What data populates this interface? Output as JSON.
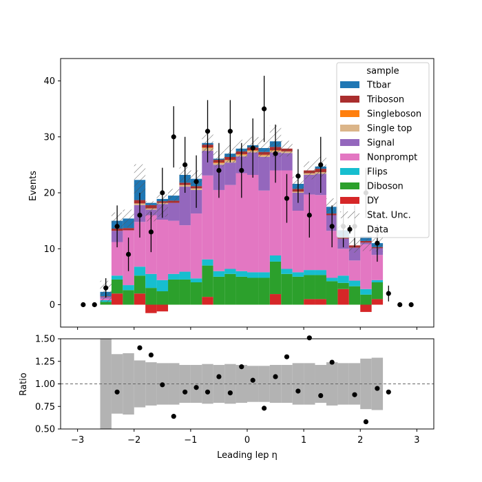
{
  "chart_data": [
    {
      "type": "bar",
      "stacked": true,
      "ylabel": "Events",
      "ylim": [
        -4,
        44
      ],
      "yticks": [
        0,
        10,
        20,
        30,
        40
      ],
      "xlim": [
        -3.3,
        3.3
      ],
      "xticks": [
        -3,
        -2,
        -1,
        0,
        1,
        2,
        3
      ],
      "legend": {
        "title": "sample",
        "position": "upper-right"
      },
      "bin_edges": [
        -2.6,
        -2.4,
        -2.2,
        -2.0,
        -1.8,
        -1.6,
        -1.4,
        -1.2,
        -1.0,
        -0.8,
        -0.6,
        -0.4,
        -0.2,
        0.0,
        0.2,
        0.4,
        0.6,
        0.8,
        1.0,
        1.2,
        1.4,
        1.6,
        1.8,
        2.0,
        2.2,
        2.4
      ],
      "series": [
        {
          "name": "DY",
          "color": "#d62728",
          "values": [
            0,
            2.0,
            0,
            2.0,
            -1.5,
            -1.2,
            0,
            0,
            0,
            1.4,
            0,
            0,
            0,
            0,
            0,
            1.9,
            0,
            0,
            1.0,
            1.0,
            0,
            2.8,
            0,
            -1.3,
            1.0
          ]
        },
        {
          "name": "Diboson",
          "color": "#2ca02c",
          "values": [
            0.5,
            2.5,
            2.6,
            3.2,
            3.0,
            2.4,
            4.5,
            4.5,
            4.0,
            5.6,
            5.0,
            5.5,
            5.0,
            4.8,
            4.8,
            5.8,
            5.5,
            5.0,
            4.3,
            4.3,
            4.2,
            1.1,
            3.3,
            1.8,
            3.0
          ]
        },
        {
          "name": "Flips",
          "color": "#17becf",
          "values": [
            0.3,
            0.7,
            0.9,
            1.6,
            2.5,
            2.0,
            1.0,
            1.4,
            0.7,
            1.1,
            1.0,
            0.9,
            1.0,
            1.0,
            1.0,
            1.1,
            0.9,
            0.8,
            0.9,
            0.9,
            0.6,
            1.3,
            1.0,
            1.0,
            0.4
          ]
        },
        {
          "name": "Nonprompt",
          "color": "#e377c2",
          "values": [
            0.3,
            6.0,
            9.8,
            8.0,
            10.5,
            10.8,
            9.5,
            8.3,
            11.6,
            15.0,
            14.5,
            15.0,
            17.5,
            17.4,
            14.6,
            15.2,
            17.6,
            11.0,
            13.5,
            13.4,
            8.4,
            4.8,
            3.6,
            8.0,
            4.5
          ]
        },
        {
          "name": "Signal",
          "color": "#9467bd",
          "values": [
            0.3,
            2.0,
            0,
            3.0,
            1.0,
            2.8,
            3.2,
            6.9,
            4.2,
            4.4,
            4.5,
            4.0,
            3.0,
            4.0,
            6.0,
            3.2,
            3.1,
            3.2,
            3.5,
            3.8,
            2.8,
            1.8,
            2.3,
            0.3,
            1.2
          ]
        },
        {
          "name": "Single top",
          "color": "#dbb589",
          "values": [
            0,
            0,
            0,
            0.3,
            0.2,
            0.2,
            0,
            0.3,
            0.3,
            0.5,
            0.3,
            0.4,
            0.3,
            0.3,
            0.3,
            0.3,
            0.3,
            0.2,
            0.3,
            0.3,
            0,
            0,
            0,
            0,
            0
          ]
        },
        {
          "name": "Singleboson",
          "color": "#ff7f0e",
          "values": [
            0,
            0,
            0,
            0,
            0,
            0,
            0,
            0,
            0,
            0.1,
            0.1,
            0.1,
            0.1,
            0.1,
            0.1,
            0.1,
            0,
            0,
            0,
            0,
            0,
            0,
            0,
            0,
            0
          ]
        },
        {
          "name": "Triboson",
          "color": "#aa2e2e",
          "values": [
            0.1,
            0.4,
            0.4,
            0.6,
            0.6,
            0.3,
            0.4,
            0.4,
            0.4,
            0.5,
            0.5,
            0.5,
            0.5,
            0.5,
            0.5,
            0.6,
            0.5,
            0.5,
            0.5,
            0.6,
            0.3,
            0.3,
            0.4,
            0.3,
            0.2
          ]
        },
        {
          "name": "Ttbar",
          "color": "#1f77b4",
          "values": [
            0.8,
            1.4,
            1.7,
            3.6,
            0.4,
            0.4,
            0.9,
            1.4,
            1.3,
            0.3,
            0.2,
            0.6,
            0.5,
            0.4,
            0.7,
            1.0,
            0,
            0.9,
            0,
            0.4,
            1.2,
            1.2,
            0,
            0.8,
            0.7
          ]
        }
      ],
      "stat_unc": {
        "name": "Stat. Unc.",
        "values": [
          2.0,
          1.5,
          1.6,
          2.8,
          1.8,
          2.0,
          1.2,
          1.4,
          1.5,
          1.8,
          1.4,
          1.6,
          1.6,
          1.5,
          1.8,
          2.8,
          1.4,
          1.3,
          1.6,
          1.8,
          1.5,
          1.5,
          1.3,
          1.3,
          1.5
        ]
      },
      "data": {
        "name": "Data",
        "x": [
          -2.9,
          -2.7,
          -2.5,
          -2.3,
          -2.1,
          -1.9,
          -1.7,
          -1.5,
          -1.3,
          -1.1,
          -0.9,
          -0.7,
          -0.5,
          -0.3,
          -0.1,
          0.1,
          0.3,
          0.5,
          0.7,
          0.9,
          1.1,
          1.3,
          1.5,
          1.7,
          1.9,
          2.1,
          2.3,
          2.5,
          2.7,
          2.9
        ],
        "y": [
          0,
          0,
          3,
          14,
          9,
          16,
          13,
          20,
          30,
          25,
          22,
          31,
          24,
          31,
          24,
          28,
          35,
          27,
          19,
          23,
          16,
          25,
          14,
          14,
          14,
          20,
          11,
          2,
          0,
          0
        ]
      }
    },
    {
      "type": "scatter",
      "xlabel": "Leading lep η",
      "ylabel": "Ratio",
      "ylim": [
        0.5,
        1.5
      ],
      "yticks": [
        "0.50",
        "0.75",
        "1.00",
        "1.25",
        "1.50"
      ],
      "xlim": [
        -3.3,
        3.3
      ],
      "xticks": [
        "−3",
        "−2",
        "−1",
        "0",
        "1",
        "2",
        "3"
      ],
      "reference_line": 1.0,
      "unc_band": [
        2.6,
        0.66,
        0.68,
        0.52,
        0.48,
        0.46,
        0.46,
        0.42,
        0.42,
        0.44,
        0.42,
        0.44,
        0.42,
        0.4,
        0.4,
        0.42,
        0.42,
        0.46,
        0.46,
        0.42,
        0.48,
        0.46,
        0.46,
        0.56,
        0.58,
        0.8
      ],
      "x": [
        -2.3,
        -1.9,
        -1.7,
        -1.5,
        -1.3,
        -1.1,
        -0.9,
        -0.7,
        -0.5,
        -0.3,
        -0.1,
        0.1,
        0.3,
        0.5,
        0.7,
        0.9,
        1.1,
        1.3,
        1.5,
        1.9,
        2.1,
        2.3,
        2.5
      ],
      "y": [
        0.91,
        1.4,
        1.32,
        0.99,
        0.64,
        0.91,
        0.96,
        0.91,
        1.08,
        0.9,
        1.19,
        1.04,
        0.73,
        1.08,
        1.3,
        0.92,
        1.51,
        0.87,
        1.24,
        0.88,
        0.58,
        0.95,
        0.91
      ]
    }
  ]
}
